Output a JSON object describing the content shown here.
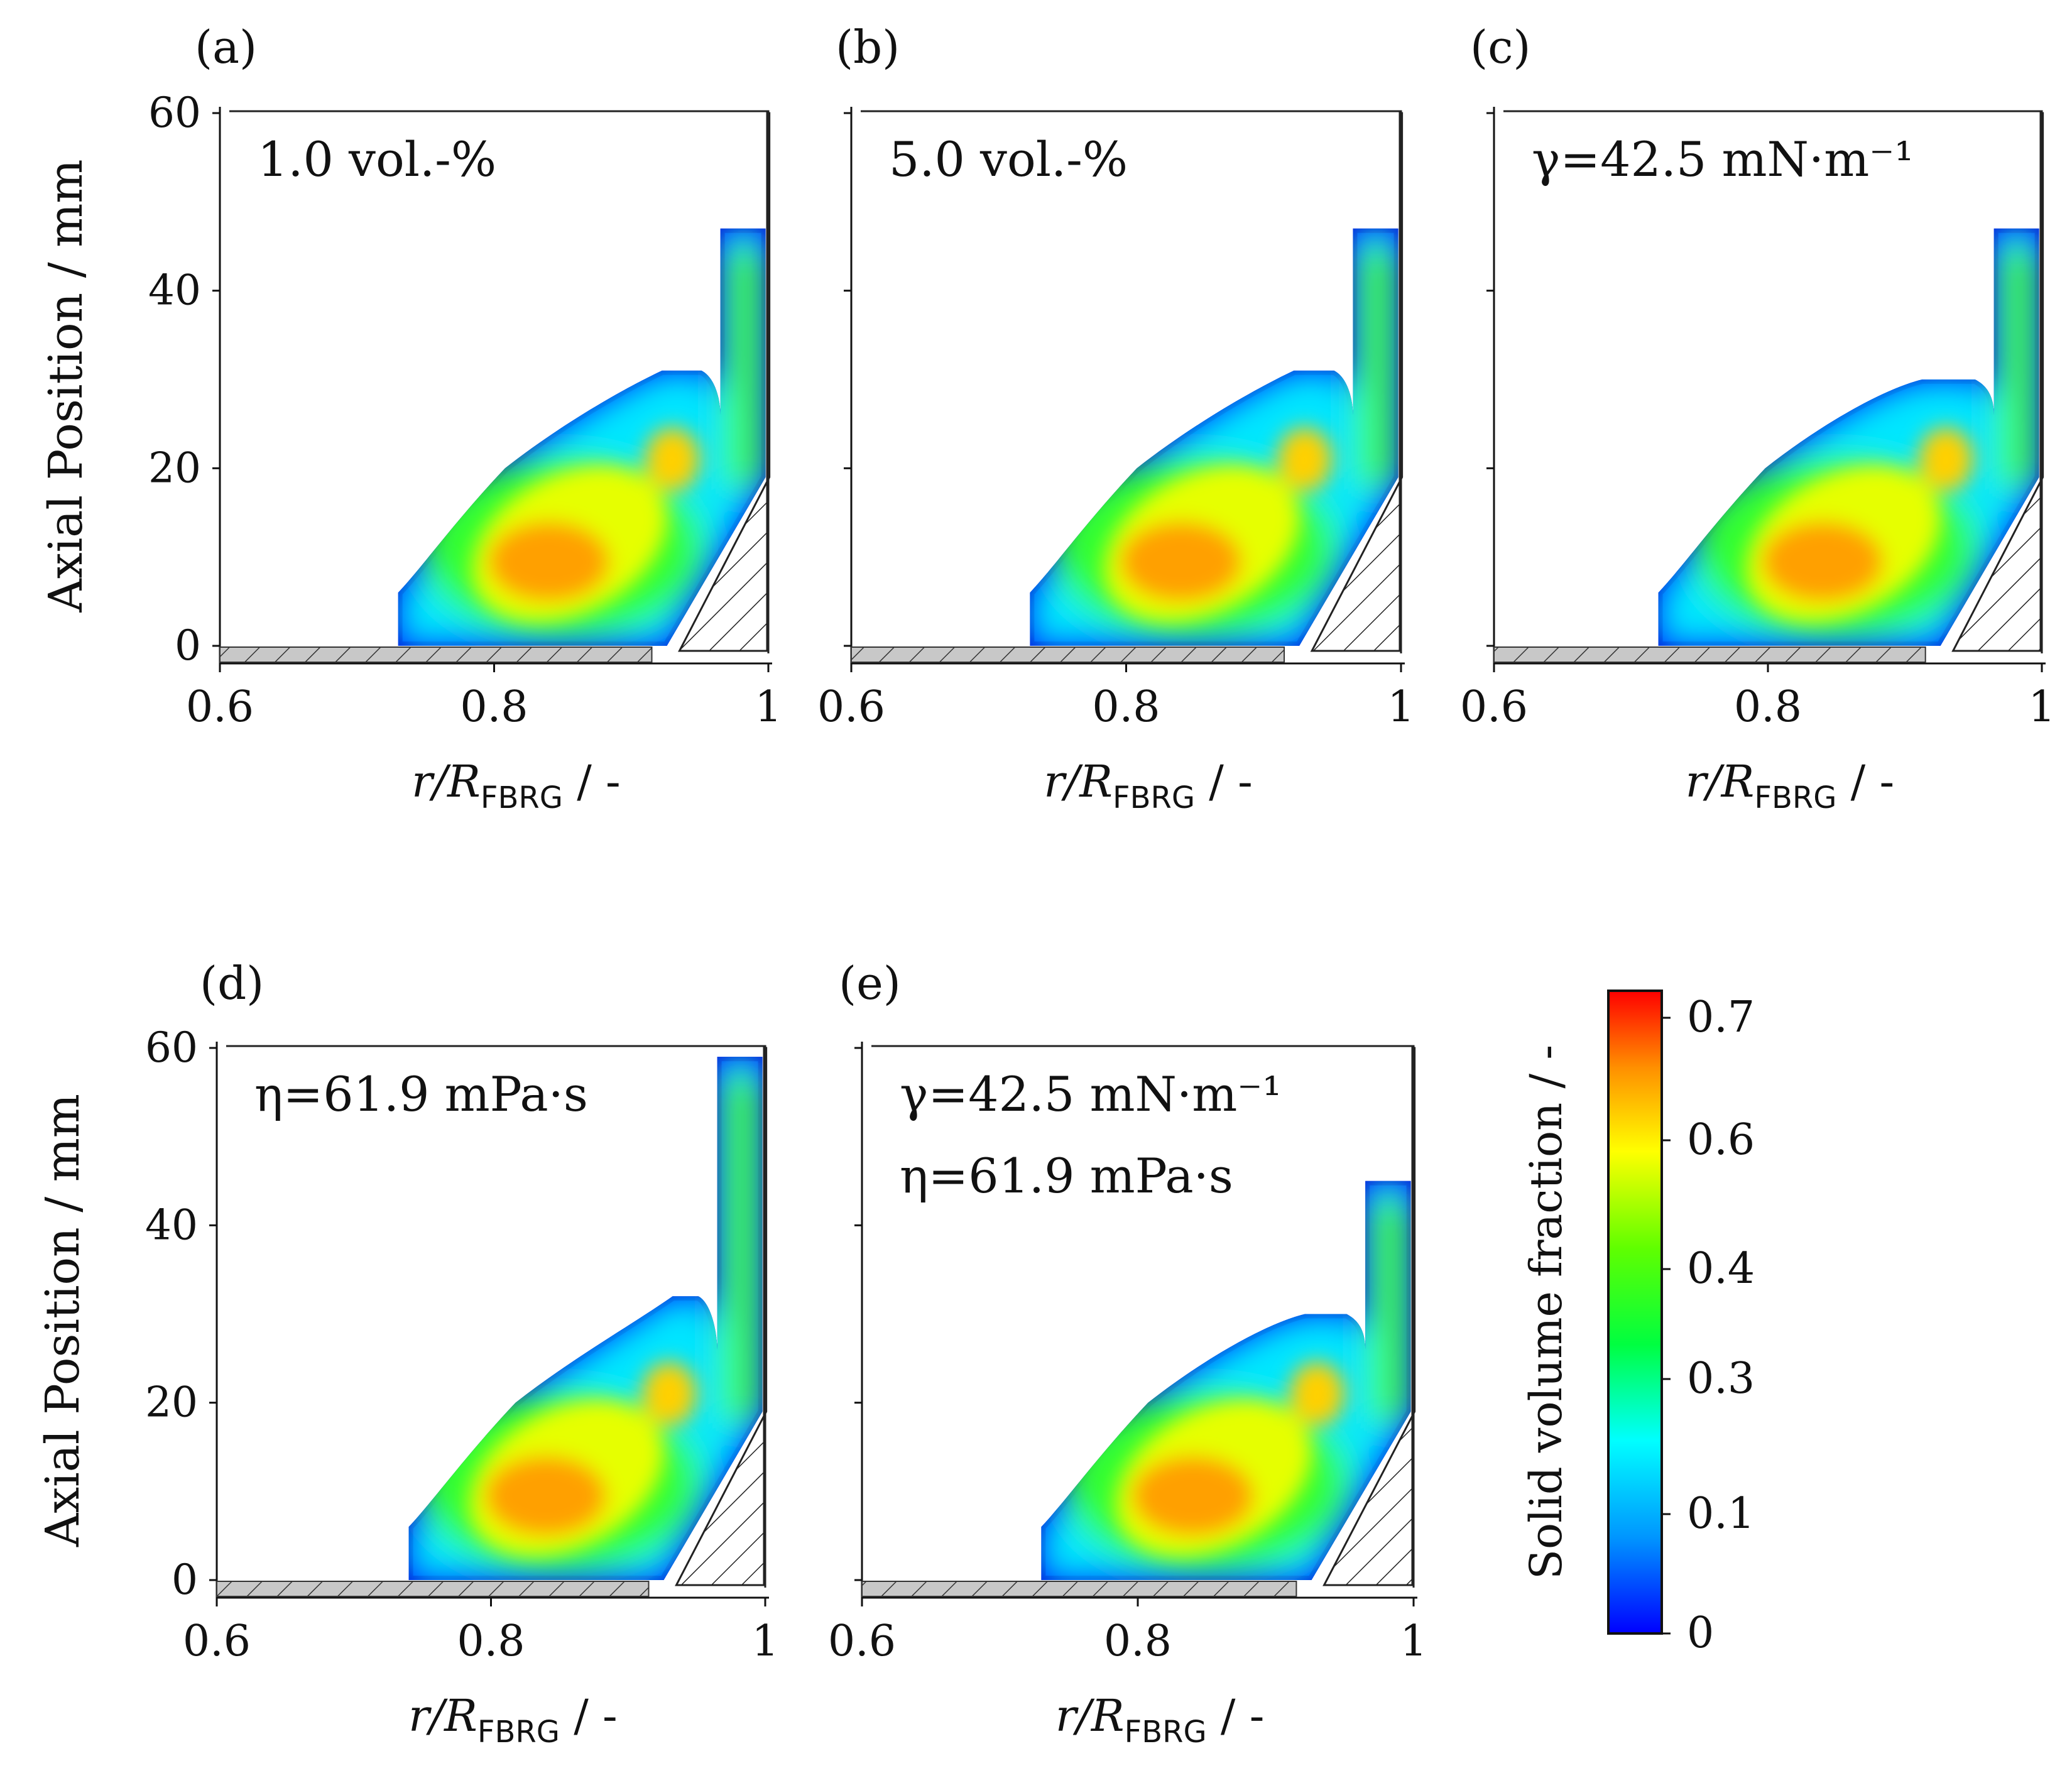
{
  "figure": {
    "axis_label_y": "Axial Position / mm",
    "axis_label_x_main": "r/R",
    "axis_label_x_sub": "FBRG",
    "axis_label_x_tail": " / -",
    "colorbar_label": "Solid volume fraction / -",
    "colorbar_ticks": [
      "0",
      "0.1",
      "0.3",
      "0.4",
      "0.6",
      "0.7"
    ]
  },
  "chart_data": [
    {
      "type": "heatmap",
      "panel": "(a)",
      "annotation": [
        "1.0 vol.-%"
      ],
      "xlim": [
        0.6,
        1.0
      ],
      "ylim": [
        0,
        60
      ],
      "xticks": [
        "0.6",
        "0.8",
        "1"
      ],
      "yticks": [
        "0",
        "20",
        "40",
        "60"
      ],
      "xlabel": "r/R_FBRG / -",
      "ylabel": "Axial Position / mm",
      "bed_left_r": 0.73,
      "bed_crest_mm": 31,
      "chimney_top_mm": 47,
      "max_fraction": 0.62
    },
    {
      "type": "heatmap",
      "panel": "(b)",
      "annotation": [
        "5.0 vol.-%"
      ],
      "xlim": [
        0.6,
        1.0
      ],
      "ylim": [
        0,
        60
      ],
      "xticks": [
        "0.6",
        "0.8",
        "1"
      ],
      "yticks": [
        "0",
        "20",
        "40",
        "60"
      ],
      "xlabel": "r/R_FBRG / -",
      "ylabel": "",
      "bed_left_r": 0.73,
      "bed_crest_mm": 31,
      "chimney_top_mm": 47,
      "max_fraction": 0.6
    },
    {
      "type": "heatmap",
      "panel": "(c)",
      "annotation": [
        "γ=42.5 mN·m⁻¹"
      ],
      "xlim": [
        0.6,
        1.0
      ],
      "ylim": [
        0,
        60
      ],
      "xticks": [
        "0.6",
        "0.8",
        "1"
      ],
      "yticks": [
        "0",
        "20",
        "40",
        "60"
      ],
      "xlabel": "r/R_FBRG / -",
      "ylabel": "",
      "bed_left_r": 0.72,
      "bed_crest_mm": 30,
      "chimney_top_mm": 47,
      "max_fraction": 0.62
    },
    {
      "type": "heatmap",
      "panel": "(d)",
      "annotation": [
        "η=61.9 mPa·s"
      ],
      "xlim": [
        0.6,
        1.0
      ],
      "ylim": [
        0,
        60
      ],
      "xticks": [
        "0.6",
        "0.8",
        "1"
      ],
      "yticks": [
        "0",
        "20",
        "40",
        "60"
      ],
      "xlabel": "r/R_FBRG / -",
      "ylabel": "Axial Position / mm",
      "bed_left_r": 0.74,
      "bed_crest_mm": 32,
      "chimney_top_mm": 59,
      "max_fraction": 0.62
    },
    {
      "type": "heatmap",
      "panel": "(e)",
      "annotation": [
        "γ=42.5 mN·m⁻¹",
        "η=61.9 mPa·s"
      ],
      "xlim": [
        0.6,
        1.0
      ],
      "ylim": [
        0,
        60
      ],
      "xticks": [
        "0.6",
        "0.8",
        "1"
      ],
      "yticks": [
        "0",
        "20",
        "40",
        "60"
      ],
      "xlabel": "r/R_FBRG / -",
      "ylabel": "",
      "bed_left_r": 0.73,
      "bed_crest_mm": 30,
      "chimney_top_mm": 45,
      "max_fraction": 0.62
    },
    {
      "type": "colorbar",
      "label": "Solid volume fraction / -",
      "range": [
        0,
        0.7
      ],
      "ticks": [
        0,
        0.1,
        0.3,
        0.4,
        0.6,
        0.7
      ],
      "colors": [
        "#0000ff",
        "#00ffff",
        "#00ff00",
        "#ffff00",
        "#ff8000",
        "#ff0000"
      ]
    }
  ]
}
